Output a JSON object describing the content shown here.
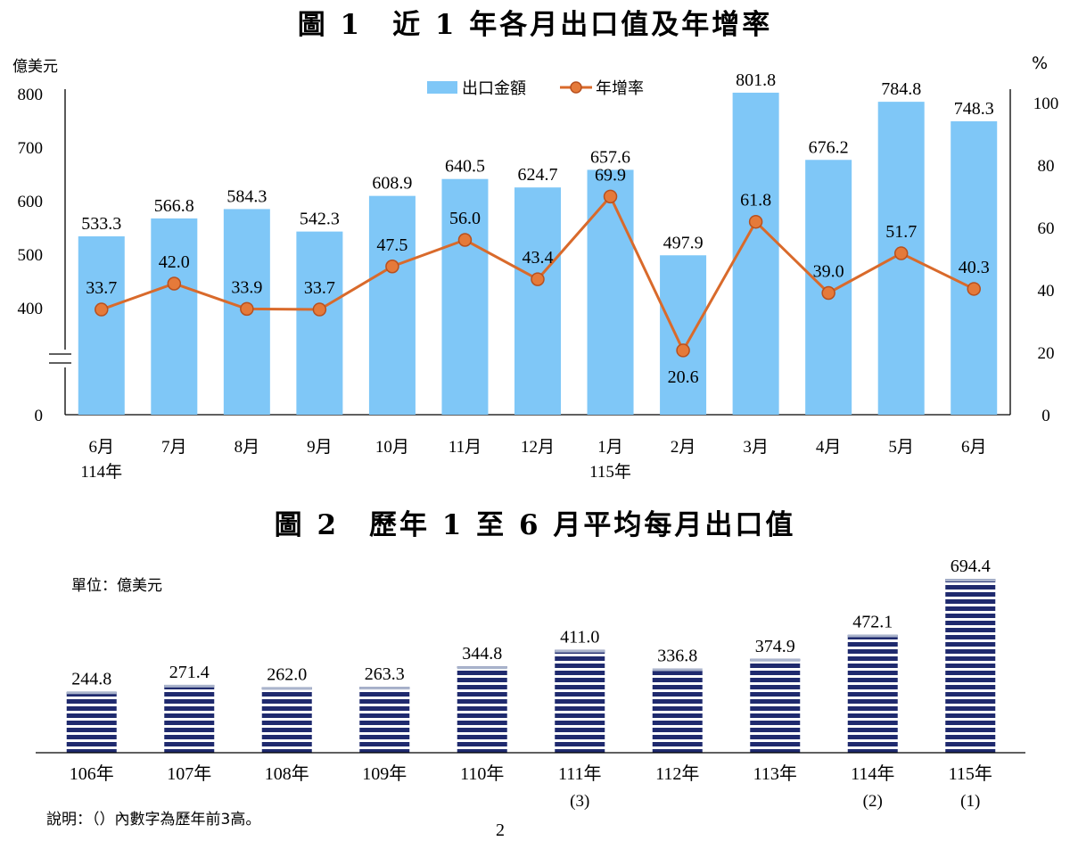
{
  "chart1": {
    "title": "圖 1　近 1 年各月出口值及年增率",
    "left_unit": "億美元",
    "right_unit": "%",
    "legend": {
      "bar": "出口金額",
      "line": "年增率"
    },
    "chart_data": {
      "type": "bar+line",
      "categories": [
        "6月",
        "7月",
        "8月",
        "9月",
        "10月",
        "11月",
        "12月",
        "1月",
        "2月",
        "3月",
        "4月",
        "5月",
        "6月"
      ],
      "year_labels": [
        {
          "index": 0,
          "text": "114年"
        },
        {
          "index": 7,
          "text": "115年"
        }
      ],
      "series": [
        {
          "name": "出口金額",
          "type": "bar",
          "axis": "left",
          "values": [
            533.3,
            566.8,
            584.3,
            542.3,
            608.9,
            640.5,
            624.7,
            657.6,
            497.9,
            801.8,
            676.2,
            784.8,
            748.3
          ]
        },
        {
          "name": "年增率",
          "type": "line",
          "axis": "right",
          "values": [
            33.7,
            42.0,
            33.9,
            33.7,
            47.5,
            56.0,
            43.4,
            69.9,
            20.6,
            61.8,
            39.0,
            51.7,
            40.3
          ]
        }
      ],
      "left_axis": {
        "ticks": [
          "0",
          "400",
          "500",
          "600",
          "700",
          "800"
        ],
        "broken": true,
        "ylim": [
          0,
          800
        ]
      },
      "right_axis": {
        "ticks": [
          "0",
          "20",
          "40",
          "60",
          "80",
          "100"
        ],
        "ylim": [
          0,
          100
        ]
      },
      "colors": {
        "bar": "#7fc7f7",
        "line": "#d96a2b",
        "marker_fill": "#e57a3a"
      }
    }
  },
  "chart2": {
    "title": "圖 2　歷年 1 至 6 月平均每月出口值",
    "unit": "單位：億美元",
    "chart_data": {
      "type": "bar",
      "categories": [
        "106年",
        "107年",
        "108年",
        "109年",
        "110年",
        "111年",
        "112年",
        "113年",
        "114年",
        "115年"
      ],
      "ranks": [
        "",
        "",
        "",
        "",
        "",
        "(3)",
        "",
        "",
        "(2)",
        "(1)"
      ],
      "values": [
        244.8,
        271.4,
        262.0,
        263.3,
        344.8,
        411.0,
        336.8,
        374.9,
        472.1,
        694.4
      ],
      "colors": {
        "stripe_dark": "#1f2a6e",
        "stripe_light": "#ffffff",
        "cap": "#aab4cc"
      }
    }
  },
  "footnote": "說明：（）內數字為歷年前3高。",
  "page_number": "2"
}
